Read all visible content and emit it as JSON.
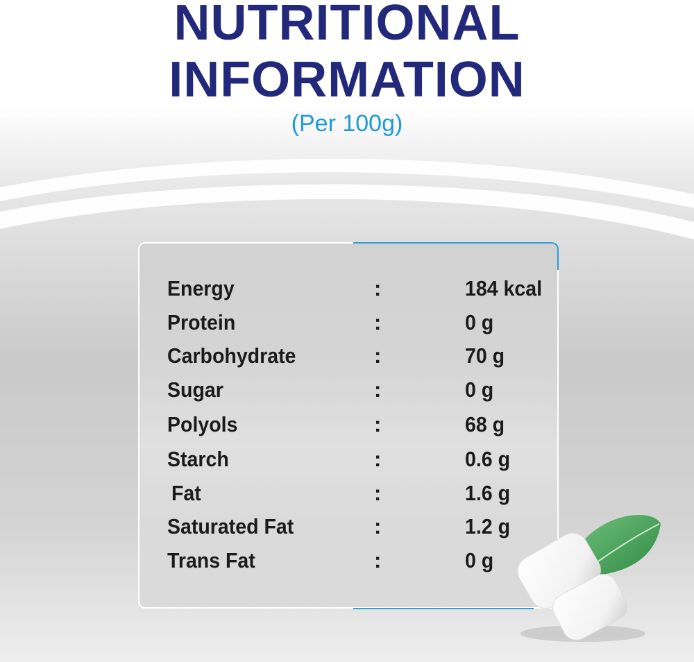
{
  "header": {
    "title_line1": "NUTRITIONAL",
    "title_line2": "INFORMATION",
    "subtitle": "(Per 100g)"
  },
  "nutrients": [
    {
      "name": "Energy",
      "separator": ":",
      "value": "184 kcal"
    },
    {
      "name": "Protein",
      "separator": ":",
      "value": "0 g"
    },
    {
      "name": "Carbohydrate",
      "separator": ":",
      "value": "70 g"
    },
    {
      "name": "Sugar",
      "separator": ":",
      "value": "0 g"
    },
    {
      "name": "Polyols",
      "separator": ":",
      "value": "68 g"
    },
    {
      "name": "Starch",
      "separator": ":",
      "value": "0.6 g"
    },
    {
      "name": "Fat",
      "separator": ":",
      "value": "1.6 g"
    },
    {
      "name": "Saturated Fat",
      "separator": ":",
      "value": "1.2 g"
    },
    {
      "name": "Trans Fat",
      "separator": ":",
      "value": "0 g"
    }
  ],
  "colors": {
    "title": "#22297a",
    "subtitle": "#1e9bd7",
    "accent_border": "#2b9fd8",
    "text": "#1b1b1b"
  },
  "illustration": {
    "icon": "chewing-gum-and-mint-leaf-icon"
  }
}
